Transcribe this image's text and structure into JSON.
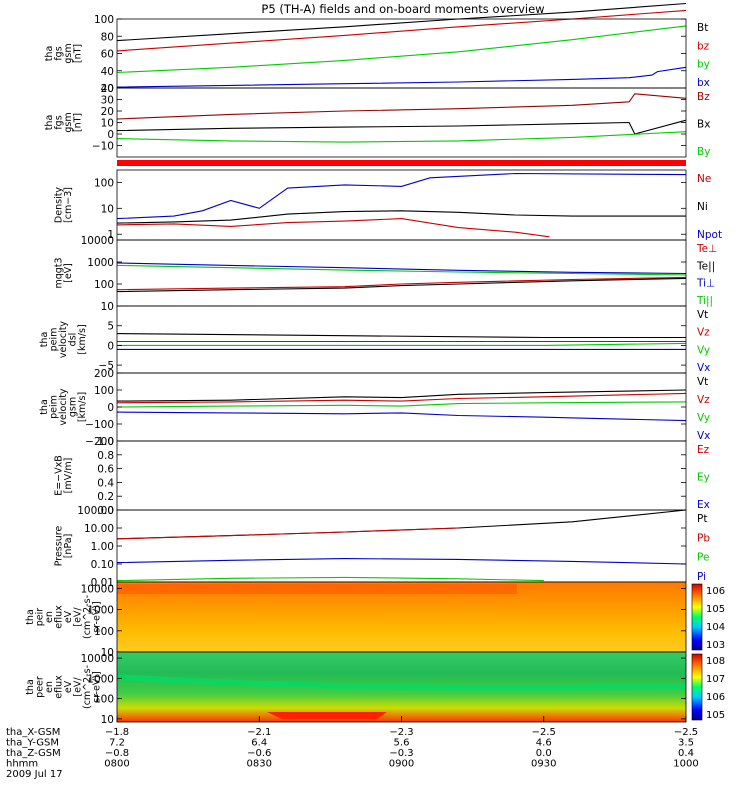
{
  "chart_data": {
    "title": "P5 (TH-A) fields and on-board moments overview",
    "type": "line",
    "panels": [
      {
        "id": "fgs-gsm",
        "ylabel": [
          "tha",
          "fgs",
          "gsm",
          "[nT]"
        ],
        "ylim": [
          20,
          100
        ],
        "scale": "linear",
        "yticks": [
          "100",
          "80",
          "60",
          "40",
          "20"
        ],
        "series": [
          {
            "name": "Bt",
            "color": "#000000",
            "x": [
              0,
              0.2,
              0.4,
              0.6,
              0.8,
              1.0
            ],
            "y": [
              75,
              83,
              91,
              100,
              108,
              118
            ]
          },
          {
            "name": "bz",
            "color": "#cc0000",
            "x": [
              0,
              0.2,
              0.4,
              0.6,
              0.8,
              1.0
            ],
            "y": [
              63,
              72,
              81,
              91,
              100,
              110
            ]
          },
          {
            "name": "by",
            "color": "#00cc00",
            "x": [
              0,
              0.2,
              0.4,
              0.6,
              0.8,
              1.0
            ],
            "y": [
              38,
              44,
              52,
              62,
              76,
              92
            ]
          },
          {
            "name": "bx",
            "color": "#0000cc",
            "x": [
              0,
              0.2,
              0.4,
              0.6,
              0.8,
              0.9,
              0.94,
              0.95,
              1.0
            ],
            "y": [
              21,
              23,
              25,
              27,
              30,
              32,
              35,
              39,
              44
            ]
          }
        ]
      },
      {
        "id": "fgs-dsl",
        "ylabel": [
          "tha",
          "fgs",
          "gsm",
          "[nT]"
        ],
        "ylim": [
          -20,
          40
        ],
        "scale": "linear",
        "yticks": [
          "40",
          "30",
          "20",
          "10",
          "0",
          "−10"
        ],
        "series": [
          {
            "name": "Bz",
            "color": "#990000",
            "x": [
              0,
              0.2,
              0.4,
              0.6,
              0.8,
              0.9,
              0.91,
              1.0
            ],
            "y": [
              13,
              17,
              20,
              22,
              25,
              28,
              35,
              31
            ]
          },
          {
            "name": "Bx",
            "color": "#000000",
            "x": [
              0,
              0.2,
              0.4,
              0.6,
              0.8,
              0.9,
              0.91,
              1.0
            ],
            "y": [
              3,
              5,
              6,
              7,
              9,
              10,
              0,
              12
            ]
          },
          {
            "name": "By",
            "color": "#00cc00",
            "x": [
              0,
              0.2,
              0.4,
              0.6,
              0.8,
              1.0
            ],
            "y": [
              -4,
              -6,
              -7,
              -6,
              -3,
              2
            ]
          }
        ]
      },
      {
        "id": "density",
        "ylabel": [
          "Density",
          "[cm−3]"
        ],
        "ylim": [
          0.6,
          300
        ],
        "scale": "log",
        "yticks": [
          "100",
          "10",
          "1"
        ],
        "series": [
          {
            "name": "Ne",
            "color": "#cc0000",
            "x": [
              0,
              0.1,
              0.2,
              0.3,
              0.4,
              0.5,
              0.6,
              0.7,
              0.76
            ],
            "y": [
              2.3,
              2.5,
              2.0,
              2.8,
              3.2,
              4.0,
              1.8,
              1.2,
              0.8
            ]
          },
          {
            "name": "Ni",
            "color": "#000000",
            "x": [
              0,
              0.1,
              0.2,
              0.3,
              0.4,
              0.5,
              0.6,
              0.7,
              0.8,
              1.0
            ],
            "y": [
              2.7,
              3.0,
              3.5,
              6.0,
              7.5,
              8.0,
              7.0,
              5.5,
              5.0,
              5.0
            ]
          },
          {
            "name": "Npot",
            "color": "#0000cc",
            "x": [
              0,
              0.1,
              0.15,
              0.2,
              0.25,
              0.3,
              0.4,
              0.5,
              0.55,
              0.7,
              1.0
            ],
            "y": [
              4,
              5,
              8,
              20,
              10,
              60,
              80,
              70,
              150,
              220,
              200
            ]
          }
        ]
      },
      {
        "id": "temperature",
        "ylabel": [
          "mqgt3",
          "[eV]"
        ],
        "ylim": [
          10,
          10000
        ],
        "scale": "log",
        "yticks": [
          "10000",
          "1000",
          "100"
        ],
        "series": [
          {
            "name": "Te⊥",
            "color": "#cc0000",
            "x": [
              0,
              0.2,
              0.4,
              0.5,
              0.6,
              0.8,
              1.0
            ],
            "y": [
              55,
              65,
              75,
              100,
              120,
              160,
              200
            ]
          },
          {
            "name": "Te||",
            "color": "#000000",
            "x": [
              0,
              0.2,
              0.4,
              0.5,
              0.6,
              0.8,
              1.0
            ],
            "y": [
              45,
              55,
              65,
              85,
              100,
              140,
              180
            ]
          },
          {
            "name": "Ti⊥",
            "color": "#0000cc",
            "x": [
              0,
              0.2,
              0.4,
              0.6,
              0.8,
              1.0
            ],
            "y": [
              900,
              700,
              550,
              420,
              340,
              300
            ]
          },
          {
            "name": "Ti||",
            "color": "#00cc00",
            "x": [
              0,
              0.2,
              0.4,
              0.6,
              0.8,
              1.0
            ],
            "y": [
              700,
              550,
              430,
              350,
              300,
              260
            ]
          }
        ]
      },
      {
        "id": "velocity-dsl",
        "ylabel": [
          "tha",
          "peim",
          "velocity",
          "dsl",
          "[km/s]"
        ],
        "ylim": [
          -7,
          10
        ],
        "scale": "linear",
        "yticks": [
          "10",
          "5",
          "0",
          "−5"
        ],
        "series": [
          {
            "name": "Vt",
            "color": "#000000",
            "x": [
              0,
              0.75,
              1.0
            ],
            "y": [
              3,
              2,
              2
            ]
          },
          {
            "name": "Vz",
            "color": "#cc0000",
            "x": [
              0,
              0.75,
              1.0
            ],
            "y": [
              1,
              1,
              1
            ]
          },
          {
            "name": "Vy",
            "color": "#00cc00",
            "x": [
              0,
              0.75,
              1.0
            ],
            "y": [
              0,
              0,
              0.5
            ]
          },
          {
            "name": "Vx",
            "color": "#0000cc",
            "x": [
              0,
              0.75,
              1.0
            ],
            "y": [
              -1,
              -1,
              -1
            ]
          }
        ]
      },
      {
        "id": "velocity-gsm",
        "ylabel": [
          "tha",
          "peim",
          "velocity",
          "gsm",
          "[km/s]"
        ],
        "ylim": [
          -200,
          200
        ],
        "scale": "linear",
        "yticks": [
          "200",
          "100",
          "0",
          "−100",
          "−200"
        ],
        "series": [
          {
            "name": "Vt",
            "color": "#000000",
            "x": [
              0,
              0.2,
              0.4,
              0.5,
              0.6,
              0.75,
              1.0
            ],
            "y": [
              35,
              40,
              60,
              55,
              75,
              85,
              100
            ]
          },
          {
            "name": "Vz",
            "color": "#cc0000",
            "x": [
              0,
              0.2,
              0.4,
              0.5,
              0.6,
              0.75,
              1.0
            ],
            "y": [
              25,
              30,
              40,
              35,
              50,
              60,
              80
            ]
          },
          {
            "name": "Vy",
            "color": "#00cc00",
            "x": [
              0,
              0.2,
              0.4,
              0.5,
              0.6,
              0.75,
              1.0
            ],
            "y": [
              0,
              5,
              10,
              5,
              20,
              25,
              30
            ]
          },
          {
            "name": "Vx",
            "color": "#0000cc",
            "x": [
              0,
              0.2,
              0.4,
              0.5,
              0.6,
              0.75,
              1.0
            ],
            "y": [
              -30,
              -35,
              -40,
              -35,
              -50,
              -60,
              -80
            ]
          }
        ]
      },
      {
        "id": "efield",
        "ylabel": [
          "E=−VxB",
          "[mV/m]"
        ],
        "ylim": [
          0,
          1
        ],
        "scale": "linear",
        "yticks": [
          "1.0",
          "0.8",
          "0.6",
          "0.4",
          "0.2",
          "0.0"
        ],
        "series": [
          {
            "name": "Ez",
            "color": "#cc0000",
            "x": [],
            "y": []
          },
          {
            "name": "Ey",
            "color": "#00cc00",
            "x": [],
            "y": []
          },
          {
            "name": "Ex",
            "color": "#0000cc",
            "x": [],
            "y": []
          }
        ]
      },
      {
        "id": "pressure",
        "ylabel": [
          "Pressure",
          "[nPa]"
        ],
        "ylim": [
          0.01,
          100
        ],
        "scale": "log",
        "yticks": [
          "100.00",
          "10.00",
          "1.00",
          "0.10",
          "0.01"
        ],
        "series": [
          {
            "name": "Pt",
            "color": "#000000",
            "x": [
              0,
              0.2,
              0.4,
              0.6,
              0.8,
              1.0
            ],
            "y": [
              2.5,
              3.8,
              6.0,
              10.0,
              22.0,
              100.0
            ]
          },
          {
            "name": "Pb",
            "color": "#cc0000",
            "x": [
              0,
              0.2,
              0.4,
              0.6
            ],
            "y": [
              2.5,
              3.8,
              6.0,
              10.0
            ]
          },
          {
            "name": "Pe",
            "color": "#00cc00",
            "x": [
              0,
              0.2,
              0.4,
              0.6,
              0.75
            ],
            "y": [
              0.012,
              0.016,
              0.018,
              0.015,
              0.012
            ]
          },
          {
            "name": "Pi",
            "color": "#0000cc",
            "x": [
              0,
              0.2,
              0.4,
              0.6,
              0.8,
              1.0
            ],
            "y": [
              0.12,
              0.16,
              0.2,
              0.18,
              0.14,
              0.1
            ]
          }
        ]
      },
      {
        "id": "peir",
        "type": "heatmap",
        "ylabel": [
          "tha",
          "peir",
          "en",
          "eflux",
          "eV",
          "[eV/",
          "(cm^2-s-",
          "sr-eV)]"
        ],
        "ylim": [
          10,
          20000
        ],
        "scale": "log",
        "yticks": [
          "10000",
          "1000",
          "100",
          "10"
        ],
        "colorbar": {
          "ticks": [
            "10^6",
            "10^5",
            "10^4",
            "10^3"
          ]
        }
      },
      {
        "id": "peer",
        "type": "heatmap",
        "ylabel": [
          "tha",
          "peer",
          "en",
          "eflux",
          "eV",
          "[eV/",
          "(cm^2-s-",
          "sr-eV)]"
        ],
        "ylim": [
          7,
          20000
        ],
        "scale": "log",
        "yticks": [
          "10000",
          "1000",
          "100",
          "10"
        ],
        "colorbar": {
          "ticks": [
            "10^8",
            "10^7",
            "10^6",
            "10^5"
          ]
        }
      }
    ],
    "xaxis": {
      "rows": [
        {
          "label": "tha_X-GSM",
          "values": [
            "−1.8",
            "−2.1",
            "−2.3",
            "−2.5",
            "−2.5"
          ]
        },
        {
          "label": "tha_Y-GSM",
          "values": [
            "7.2",
            "6.4",
            "5.6",
            "4.6",
            "3.5"
          ]
        },
        {
          "label": "tha_Z-GSM",
          "values": [
            "−0.8",
            "−0.6",
            "−0.3",
            "0.0",
            "0.4"
          ]
        },
        {
          "label": "hhmm",
          "values": [
            "0800",
            "0830",
            "0900",
            "0930",
            "1000"
          ]
        }
      ],
      "date": "2009 Jul 17"
    }
  }
}
